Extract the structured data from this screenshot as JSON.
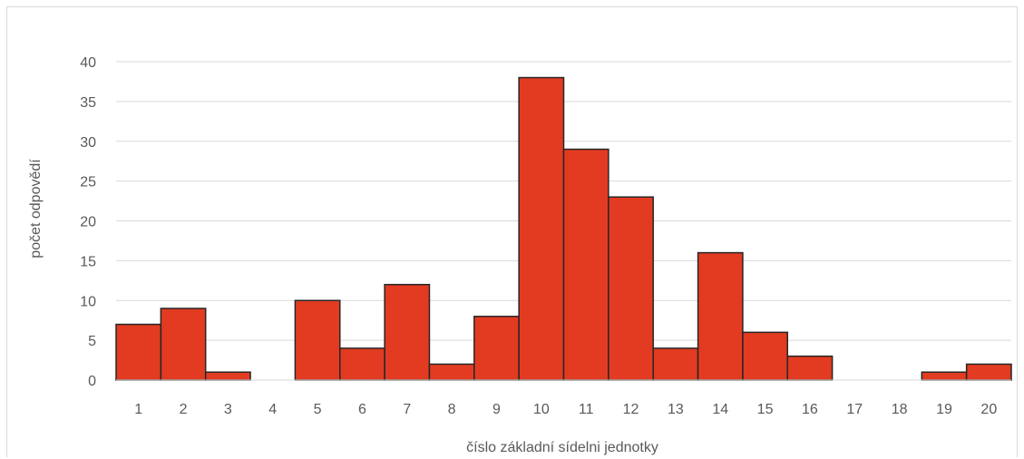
{
  "chart_data": {
    "type": "bar",
    "title": "",
    "xlabel": "číslo základní sídelni jednotky",
    "ylabel": "počet odpovědí",
    "categories": [
      "1",
      "2",
      "3",
      "4",
      "5",
      "6",
      "7",
      "8",
      "9",
      "10",
      "11",
      "12",
      "13",
      "14",
      "15",
      "16",
      "17",
      "18",
      "19",
      "20"
    ],
    "values": [
      7,
      9,
      1,
      0,
      10,
      4,
      12,
      2,
      8,
      38,
      29,
      23,
      4,
      16,
      6,
      3,
      0,
      0,
      1,
      2
    ],
    "yticks": [
      0,
      5,
      10,
      15,
      20,
      25,
      30,
      35,
      40
    ],
    "ylim": [
      0,
      40
    ],
    "grid": true,
    "legend": "none",
    "bar_color": "#e23b21",
    "bar_edge_color": "#262626",
    "grid_color": "#d9d9d9"
  }
}
